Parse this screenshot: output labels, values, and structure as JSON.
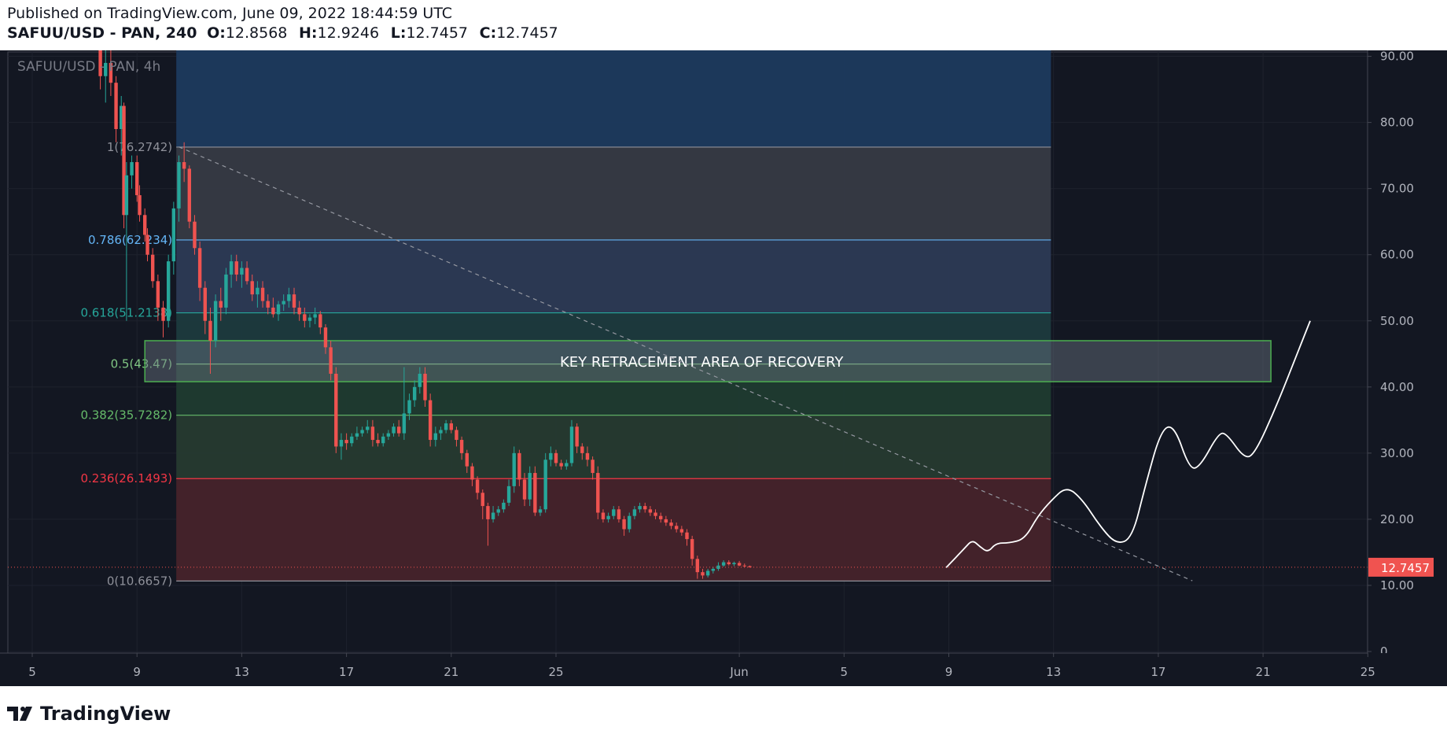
{
  "header": {
    "published": "Published on TradingView.com, June 09, 2022 18:44:59 UTC",
    "symbol_line": "SAFUU/USD - PAN, 240",
    "o_label": "O:",
    "o_value": "12.8568",
    "h_label": "H:",
    "h_value": "12.9246",
    "l_label": "L:",
    "l_value": "12.7457",
    "c_label": "C:",
    "c_value": "12.7457"
  },
  "footer": {
    "brand": "TradingView"
  },
  "colors": {
    "background": "#131722",
    "text": "#b2b5be",
    "up": "#26a69a",
    "down": "#ef5350",
    "price_tag": "#f05350"
  },
  "chart_data": {
    "type": "candlestick",
    "title": "SAFUU/USD - PAN, 4h",
    "price_label": "12.7457",
    "y_ticks": [
      "0",
      "10.00",
      "20.00",
      "30.00",
      "40.00",
      "50.00",
      "60.00",
      "70.00",
      "80.00",
      "90.00"
    ],
    "ylim": [
      0,
      90
    ],
    "x_ticks": [
      {
        "label": "5",
        "day": 5
      },
      {
        "label": "9",
        "day": 9
      },
      {
        "label": "13",
        "day": 13
      },
      {
        "label": "17",
        "day": 17
      },
      {
        "label": "21",
        "day": 21
      },
      {
        "label": "25",
        "day": 25
      },
      {
        "label": "Jun",
        "day": 32
      },
      {
        "label": "5",
        "day": 36
      },
      {
        "label": "9",
        "day": 40
      },
      {
        "label": "13",
        "day": 44
      },
      {
        "label": "17",
        "day": 48
      },
      {
        "label": "21",
        "day": 52
      },
      {
        "label": "25",
        "day": 56
      }
    ],
    "fib_levels": [
      {
        "label": "1(76.2742)",
        "ratio": 1,
        "price": 76.2742,
        "color": "#8f919a",
        "fill": "#363a45"
      },
      {
        "label": "0.786(62.234)",
        "ratio": 0.786,
        "price": 62.234,
        "color": "#64b5f6",
        "fill": "#2c3a55"
      },
      {
        "label": "0.618(51.2138)",
        "ratio": 0.618,
        "price": 51.2138,
        "color": "#26a69a",
        "fill": "#1c3a3e"
      },
      {
        "label": "0.5(43.47)",
        "ratio": 0.5,
        "price": 43.47,
        "color": "#81c784",
        "fill": "#1f3b30"
      },
      {
        "label": "0.382(35.7282)",
        "ratio": 0.382,
        "price": 35.7282,
        "color": "#66bb6a",
        "fill": "#263a30"
      },
      {
        "label": "0.236(26.1493)",
        "ratio": 0.236,
        "price": 26.1493,
        "color": "#f23645",
        "fill": "#46232b"
      },
      {
        "label": "0(10.6657)",
        "ratio": 0,
        "price": 10.6657,
        "color": "#8f919a",
        "fill": ""
      }
    ],
    "fib_top_fill": "#1c3a5e",
    "key_zone": {
      "label": "KEY RETRACEMENT AREA OF RECOVERY",
      "low": 40.8,
      "high": 47.0
    },
    "trend_line": {
      "from": [
        10.6,
        76.3
      ],
      "to": [
        49.3,
        10.7
      ]
    },
    "projection": [
      [
        39.9,
        12.7
      ],
      [
        40.6,
        15.6
      ],
      [
        40.9,
        16.9
      ],
      [
        41.2,
        15.8
      ],
      [
        41.5,
        15.0
      ],
      [
        41.8,
        16.4
      ],
      [
        42.3,
        16.4
      ],
      [
        42.9,
        17.0
      ],
      [
        43.4,
        20.5
      ],
      [
        43.9,
        22.8
      ],
      [
        44.5,
        25.0
      ],
      [
        45.1,
        23.0
      ],
      [
        45.8,
        18.8
      ],
      [
        46.4,
        16.2
      ],
      [
        47.0,
        17.1
      ],
      [
        47.5,
        25.0
      ],
      [
        48.1,
        33.5
      ],
      [
        48.6,
        34.3
      ],
      [
        49.2,
        27.5
      ],
      [
        49.6,
        28.0
      ],
      [
        50.3,
        33.0
      ],
      [
        50.6,
        33.0
      ],
      [
        51.3,
        29.1
      ],
      [
        51.7,
        30.0
      ],
      [
        52.5,
        37.0
      ],
      [
        53.3,
        45.0
      ],
      [
        53.8,
        50.0
      ]
    ],
    "candles": [
      [
        7.6,
        96.0,
        98.0,
        85.0,
        87.0
      ],
      [
        7.8,
        87.0,
        91.0,
        83.0,
        89.0
      ],
      [
        8.0,
        89.0,
        92.0,
        84.0,
        86.0
      ],
      [
        8.2,
        86.0,
        87.0,
        77.0,
        79.0
      ],
      [
        8.4,
        79.0,
        84.0,
        75.0,
        82.5
      ],
      [
        8.5,
        82.5,
        83.0,
        64.0,
        66.0
      ],
      [
        8.6,
        66.0,
        74.0,
        50.0,
        72.0
      ],
      [
        8.8,
        72.0,
        75.0,
        70.0,
        74.0
      ],
      [
        9.0,
        74.0,
        75.0,
        68.0,
        69.0
      ],
      [
        9.1,
        69.0,
        70.5,
        65.0,
        66.0
      ],
      [
        9.3,
        66.0,
        67.0,
        62.0,
        63.0
      ],
      [
        9.4,
        63.0,
        64.0,
        59.0,
        60.0
      ],
      [
        9.6,
        60.0,
        61.0,
        55.0,
        56.0
      ],
      [
        9.8,
        56.0,
        57.0,
        50.0,
        52.0
      ],
      [
        10.0,
        52.0,
        53.0,
        47.5,
        50.0
      ],
      [
        10.2,
        50.0,
        60.0,
        49.0,
        59.0
      ],
      [
        10.4,
        59.0,
        68.0,
        57.0,
        67.0
      ],
      [
        10.6,
        67.0,
        75.0,
        65.0,
        74.0
      ],
      [
        10.8,
        74.0,
        77.0,
        71.0,
        73.0
      ],
      [
        11.0,
        73.0,
        73.5,
        64.0,
        65.0
      ],
      [
        11.2,
        65.0,
        66.0,
        60.0,
        61.0
      ],
      [
        11.4,
        61.0,
        62.0,
        53.0,
        55.0
      ],
      [
        11.6,
        55.0,
        56.0,
        48.0,
        50.0
      ],
      [
        11.8,
        50.0,
        52.0,
        42.0,
        47.0
      ],
      [
        12.0,
        47.0,
        54.0,
        46.0,
        53.0
      ],
      [
        12.2,
        53.0,
        55.0,
        50.0,
        52.0
      ],
      [
        12.4,
        52.0,
        58.0,
        51.0,
        57.0
      ],
      [
        12.6,
        57.0,
        60.0,
        55.0,
        59.0
      ],
      [
        12.8,
        59.0,
        60.0,
        56.0,
        57.0
      ],
      [
        13.0,
        57.0,
        59.0,
        55.0,
        58.0
      ],
      [
        13.2,
        58.0,
        59.0,
        55.5,
        56.0
      ],
      [
        13.4,
        56.0,
        57.0,
        53.0,
        54.0
      ],
      [
        13.6,
        54.0,
        56.0,
        52.0,
        55.0
      ],
      [
        13.8,
        55.0,
        56.0,
        52.0,
        53.0
      ],
      [
        14.0,
        53.0,
        54.0,
        51.0,
        52.0
      ],
      [
        14.2,
        52.0,
        53.5,
        50.5,
        51.0
      ],
      [
        14.4,
        51.0,
        53.0,
        50.0,
        52.5
      ],
      [
        14.6,
        52.5,
        54.0,
        51.5,
        53.0
      ],
      [
        14.8,
        53.0,
        55.0,
        52.0,
        54.0
      ],
      [
        15.0,
        54.0,
        55.0,
        51.0,
        52.0
      ],
      [
        15.2,
        52.0,
        53.0,
        50.0,
        51.0
      ],
      [
        15.4,
        51.0,
        52.0,
        49.0,
        50.0
      ],
      [
        15.6,
        50.0,
        51.0,
        49.0,
        50.5
      ],
      [
        15.8,
        50.5,
        52.0,
        49.5,
        51.0
      ],
      [
        16.0,
        51.0,
        51.5,
        48.0,
        49.0
      ],
      [
        16.2,
        49.0,
        49.5,
        45.0,
        46.0
      ],
      [
        16.4,
        46.0,
        47.0,
        41.0,
        42.0
      ],
      [
        16.6,
        42.0,
        43.0,
        30.0,
        31.0
      ],
      [
        16.8,
        31.0,
        33.0,
        29.0,
        32.0
      ],
      [
        17.0,
        32.0,
        33.0,
        30.5,
        31.5
      ],
      [
        17.2,
        31.5,
        33.0,
        31.0,
        32.5
      ],
      [
        17.4,
        32.5,
        34.0,
        32.0,
        33.0
      ],
      [
        17.6,
        33.0,
        34.0,
        32.5,
        33.5
      ],
      [
        17.8,
        33.5,
        35.0,
        33.0,
        34.0
      ],
      [
        18.0,
        34.0,
        35.0,
        31.0,
        32.0
      ],
      [
        18.2,
        32.0,
        33.0,
        31.0,
        31.5
      ],
      [
        18.4,
        31.5,
        33.0,
        31.0,
        32.5
      ],
      [
        18.6,
        32.5,
        33.5,
        32.0,
        33.0
      ],
      [
        18.8,
        33.0,
        34.5,
        32.5,
        34.0
      ],
      [
        19.0,
        34.0,
        35.0,
        32.5,
        33.0
      ],
      [
        19.2,
        33.0,
        43.0,
        32.0,
        36.0
      ],
      [
        19.4,
        36.0,
        39.0,
        35.0,
        38.0
      ],
      [
        19.6,
        38.0,
        41.0,
        37.0,
        40.0
      ],
      [
        19.8,
        40.0,
        43.0,
        39.0,
        42.0
      ],
      [
        20.0,
        42.0,
        43.0,
        37.0,
        38.0
      ],
      [
        20.2,
        38.0,
        39.0,
        31.0,
        32.0
      ],
      [
        20.4,
        32.0,
        34.0,
        31.0,
        33.0
      ],
      [
        20.6,
        33.0,
        34.0,
        32.0,
        33.5
      ],
      [
        20.8,
        33.5,
        35.0,
        33.0,
        34.5
      ],
      [
        21.0,
        34.5,
        35.0,
        33.0,
        33.5
      ],
      [
        21.2,
        33.5,
        34.0,
        31.0,
        32.0
      ],
      [
        21.4,
        32.0,
        32.5,
        29.0,
        30.0
      ],
      [
        21.6,
        30.0,
        30.5,
        27.0,
        28.0
      ],
      [
        21.8,
        28.0,
        28.5,
        25.0,
        26.0
      ],
      [
        22.0,
        26.0,
        26.5,
        23.0,
        24.0
      ],
      [
        22.2,
        24.0,
        24.5,
        20.0,
        22.0
      ],
      [
        22.4,
        22.0,
        22.5,
        16.0,
        20.0
      ],
      [
        22.6,
        20.0,
        22.0,
        19.5,
        21.0
      ],
      [
        22.8,
        21.0,
        22.0,
        20.5,
        21.5
      ],
      [
        23.0,
        21.5,
        23.0,
        21.0,
        22.5
      ],
      [
        23.2,
        22.5,
        26.0,
        22.0,
        25.0
      ],
      [
        23.4,
        25.0,
        31.0,
        24.0,
        30.0
      ],
      [
        23.6,
        30.0,
        30.5,
        25.0,
        26.0
      ],
      [
        23.8,
        26.0,
        27.0,
        22.0,
        23.0
      ],
      [
        24.0,
        23.0,
        28.0,
        22.0,
        27.0
      ],
      [
        24.2,
        27.0,
        28.0,
        20.5,
        21.0
      ],
      [
        24.4,
        21.0,
        22.0,
        20.5,
        21.5
      ],
      [
        24.6,
        21.5,
        30.0,
        21.0,
        29.0
      ],
      [
        24.8,
        29.0,
        31.0,
        28.0,
        30.0
      ],
      [
        25.0,
        30.0,
        30.5,
        28.0,
        28.5
      ],
      [
        25.2,
        28.5,
        29.0,
        27.5,
        28.0
      ],
      [
        25.4,
        28.0,
        29.0,
        27.5,
        28.5
      ],
      [
        25.6,
        28.5,
        35.0,
        28.0,
        34.0
      ],
      [
        25.8,
        34.0,
        34.5,
        30.0,
        31.0
      ],
      [
        26.0,
        31.0,
        31.5,
        29.0,
        30.0
      ],
      [
        26.2,
        30.0,
        31.0,
        28.0,
        29.0
      ],
      [
        26.4,
        29.0,
        29.5,
        26.0,
        27.0
      ],
      [
        26.6,
        27.0,
        28.0,
        20.0,
        21.0
      ],
      [
        26.8,
        21.0,
        21.5,
        19.5,
        20.0
      ],
      [
        27.0,
        20.0,
        21.0,
        19.5,
        20.5
      ],
      [
        27.2,
        20.5,
        22.0,
        20.0,
        21.5
      ],
      [
        27.4,
        21.5,
        22.0,
        19.5,
        20.0
      ],
      [
        27.6,
        20.0,
        20.5,
        17.5,
        18.5
      ],
      [
        27.8,
        18.5,
        21.0,
        18.0,
        20.5
      ],
      [
        28.0,
        20.5,
        22.0,
        20.0,
        21.5
      ],
      [
        28.2,
        21.5,
        22.5,
        21.0,
        22.0
      ],
      [
        28.4,
        22.0,
        22.5,
        21.0,
        21.5
      ],
      [
        28.6,
        21.5,
        22.0,
        20.5,
        21.0
      ],
      [
        28.8,
        21.0,
        21.5,
        20.0,
        20.5
      ],
      [
        29.0,
        20.5,
        21.0,
        19.5,
        20.0
      ],
      [
        29.2,
        20.0,
        20.5,
        19.0,
        19.5
      ],
      [
        29.4,
        19.5,
        20.0,
        18.5,
        19.0
      ],
      [
        29.6,
        19.0,
        19.5,
        18.0,
        18.5
      ],
      [
        29.8,
        18.5,
        19.0,
        17.5,
        18.0
      ],
      [
        30.0,
        18.0,
        18.5,
        16.0,
        17.0
      ],
      [
        30.2,
        17.0,
        17.5,
        13.0,
        14.0
      ],
      [
        30.4,
        14.0,
        14.5,
        11.0,
        12.0
      ],
      [
        30.6,
        12.0,
        12.5,
        11.0,
        11.5
      ],
      [
        30.8,
        11.5,
        12.5,
        11.2,
        12.2
      ],
      [
        31.0,
        12.2,
        12.8,
        11.8,
        12.5
      ],
      [
        31.2,
        12.5,
        13.5,
        12.2,
        13.0
      ],
      [
        31.4,
        13.0,
        13.8,
        12.8,
        13.5
      ],
      [
        31.6,
        13.5,
        13.8,
        13.0,
        13.2
      ],
      [
        31.8,
        13.2,
        13.6,
        12.9,
        13.4
      ],
      [
        32.0,
        13.4,
        13.7,
        12.9,
        13.0
      ],
      [
        32.2,
        13.0,
        13.3,
        12.7,
        12.9
      ],
      [
        32.4,
        12.9,
        13.0,
        12.7,
        12.75
      ]
    ]
  }
}
